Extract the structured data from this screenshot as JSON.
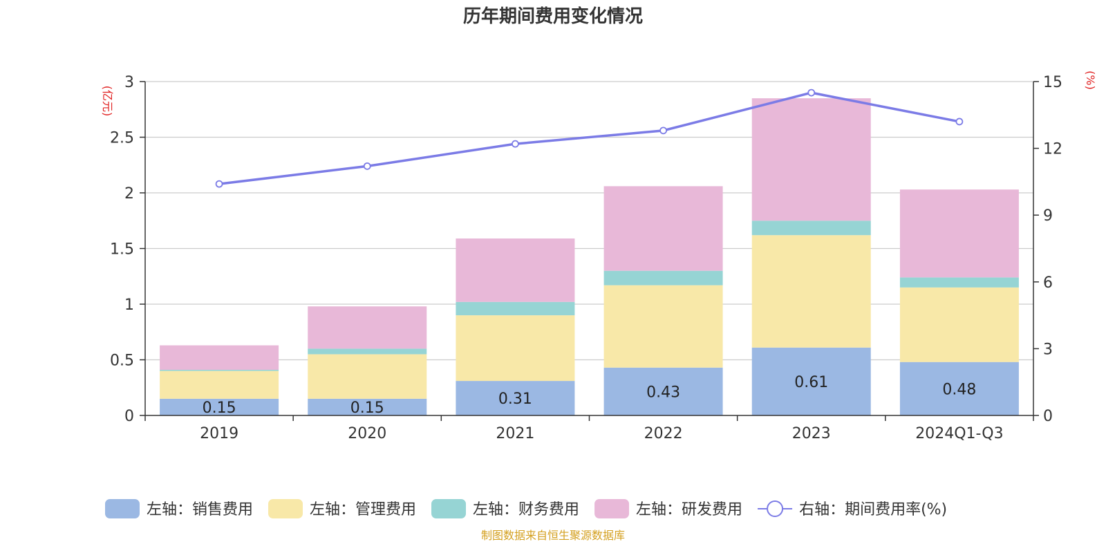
{
  "chart_data": {
    "type": "bar",
    "title": "历年期间费用变化情况",
    "categories": [
      "2019",
      "2020",
      "2021",
      "2022",
      "2023",
      "2024Q1-Q3"
    ],
    "left_axis": {
      "unit": "(亿元)",
      "ylim": [
        0,
        3
      ],
      "ticks": [
        "0",
        "0.5",
        "1",
        "1.5",
        "2",
        "2.5",
        "3"
      ],
      "tick_values": [
        0,
        0.5,
        1,
        1.5,
        2,
        2.5,
        3
      ]
    },
    "right_axis": {
      "unit": "(%)",
      "ylim": [
        0,
        15
      ],
      "ticks": [
        "0",
        "3",
        "6",
        "9",
        "12",
        "15"
      ],
      "tick_values": [
        0,
        3,
        6,
        9,
        12,
        15
      ]
    },
    "series": [
      {
        "name": "左轴：销售费用",
        "kind": "bar",
        "axis": "left",
        "color": "#9bb8e3",
        "values": [
          0.15,
          0.15,
          0.31,
          0.43,
          0.61,
          0.48
        ],
        "labels": [
          "0.15",
          "0.15",
          "0.31",
          "0.43",
          "0.61",
          "0.48"
        ]
      },
      {
        "name": "左轴：管理费用",
        "kind": "bar",
        "axis": "left",
        "color": "#f8e8a8",
        "values": [
          0.25,
          0.4,
          0.59,
          0.74,
          1.01,
          0.67
        ]
      },
      {
        "name": "左轴：财务费用",
        "kind": "bar",
        "axis": "left",
        "color": "#96d4d4",
        "values": [
          0.01,
          0.05,
          0.12,
          0.13,
          0.13,
          0.09
        ]
      },
      {
        "name": "左轴：研发费用",
        "kind": "bar",
        "axis": "left",
        "color": "#e8b8d8",
        "values": [
          0.22,
          0.38,
          0.57,
          0.76,
          1.1,
          0.79
        ]
      },
      {
        "name": "右轴：期间费用率(%)",
        "kind": "line",
        "axis": "right",
        "color": "#7b7be6",
        "values": [
          10.4,
          11.2,
          12.2,
          12.8,
          14.5,
          13.2
        ]
      }
    ],
    "grid": true,
    "legend_position": "bottom"
  },
  "source": {
    "text": "制图数据来自恒生聚源数据库",
    "color": "#d4a020"
  },
  "colors": {
    "unit_color": "#e02020",
    "grid_color": "#cccccc",
    "axis_color": "#333333"
  }
}
